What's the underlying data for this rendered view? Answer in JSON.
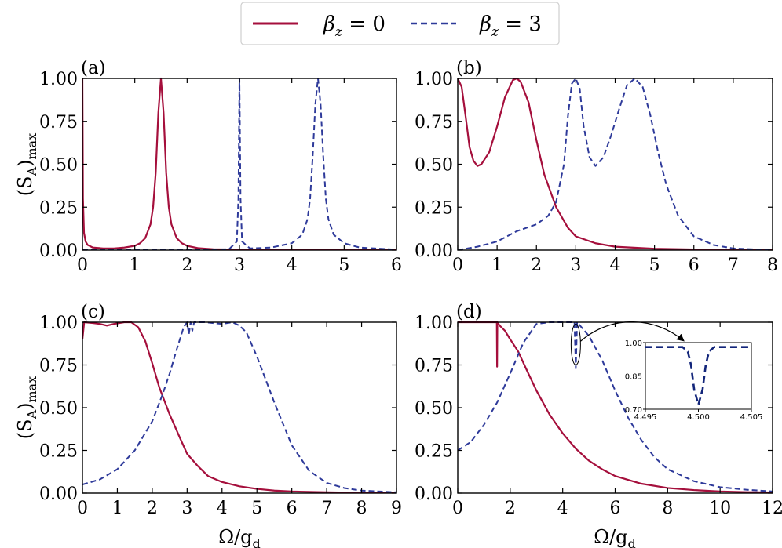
{
  "legend": {
    "entries": [
      {
        "label": "βz = 0",
        "sym": "β",
        "sub": "z",
        "rest": " = 0",
        "color": "#a50f3c",
        "dash": "solid"
      },
      {
        "label": "βz = 3",
        "sym": "β",
        "sub": "z",
        "rest": " = 3",
        "color": "#2e3a9a",
        "dash": "dashed"
      }
    ]
  },
  "y_axis_title": {
    "main": "(S",
    "sub1": "A",
    "close": ")",
    "sub2": "max"
  },
  "x_axis_title": {
    "main": "Ω/g",
    "sub": "d"
  },
  "chart_data": [
    {
      "type": "line",
      "panel": "(a)",
      "xlim": [
        0,
        6
      ],
      "ylim": [
        0,
        1
      ],
      "x_ticks": [
        "0",
        "1",
        "2",
        "3",
        "4",
        "5",
        "6"
      ],
      "y_ticks": [
        "0.00",
        "0.25",
        "0.50",
        "0.75",
        "1.00"
      ],
      "xlabel": "",
      "ylabel": "(SA)max",
      "series": [
        {
          "name": "βz = 0",
          "x": [
            0,
            0.01,
            0.03,
            0.06,
            0.1,
            0.2,
            0.4,
            0.6,
            0.8,
            1.0,
            1.1,
            1.2,
            1.3,
            1.35,
            1.4,
            1.45,
            1.5,
            1.55,
            1.6,
            1.65,
            1.7,
            1.8,
            1.9,
            2.0,
            2.2,
            2.5,
            3.0,
            4.0,
            5.0,
            6.0
          ],
          "y": [
            1.0,
            0.3,
            0.1,
            0.05,
            0.03,
            0.015,
            0.01,
            0.01,
            0.015,
            0.025,
            0.04,
            0.07,
            0.15,
            0.25,
            0.45,
            0.8,
            1.0,
            0.8,
            0.45,
            0.25,
            0.15,
            0.07,
            0.04,
            0.025,
            0.012,
            0.005,
            0.003,
            0.001,
            0.001,
            0.0
          ]
        },
        {
          "name": "βz = 3",
          "x": [
            0,
            1.0,
            2.0,
            2.8,
            2.95,
            2.98,
            3.0,
            3.02,
            3.05,
            3.2,
            3.6,
            4.0,
            4.2,
            4.3,
            4.35,
            4.4,
            4.45,
            4.5,
            4.55,
            4.6,
            4.65,
            4.7,
            4.8,
            5.0,
            5.3,
            6.0
          ],
          "y": [
            0,
            0.002,
            0.003,
            0.005,
            0.05,
            0.3,
            1.0,
            0.3,
            0.05,
            0.01,
            0.015,
            0.04,
            0.09,
            0.18,
            0.3,
            0.55,
            0.85,
            1.0,
            0.85,
            0.55,
            0.3,
            0.18,
            0.09,
            0.04,
            0.015,
            0.003
          ]
        }
      ]
    },
    {
      "type": "line",
      "panel": "(b)",
      "xlim": [
        0,
        8
      ],
      "ylim": [
        0,
        1
      ],
      "x_ticks": [
        "0",
        "1",
        "2",
        "3",
        "4",
        "5",
        "6",
        "7",
        "8"
      ],
      "y_ticks": [
        "0.00",
        "0.25",
        "0.50",
        "0.75",
        "1.00"
      ],
      "xlabel": "",
      "ylabel": "",
      "series": [
        {
          "name": "βz = 0",
          "x": [
            0,
            0.1,
            0.2,
            0.3,
            0.4,
            0.5,
            0.6,
            0.8,
            1.0,
            1.2,
            1.4,
            1.5,
            1.6,
            1.8,
            2.0,
            2.2,
            2.5,
            2.8,
            3.0,
            3.5,
            4.0,
            5.0,
            6.0,
            8.0
          ],
          "y": [
            1.0,
            0.95,
            0.78,
            0.6,
            0.52,
            0.49,
            0.5,
            0.57,
            0.72,
            0.89,
            0.99,
            1.0,
            0.98,
            0.86,
            0.64,
            0.44,
            0.25,
            0.13,
            0.08,
            0.04,
            0.02,
            0.008,
            0.004,
            0.0
          ]
        },
        {
          "name": "βz = 3",
          "x": [
            0,
            0.5,
            1.0,
            1.5,
            2.0,
            2.3,
            2.5,
            2.7,
            2.8,
            2.9,
            3.0,
            3.1,
            3.2,
            3.35,
            3.5,
            3.7,
            3.9,
            4.1,
            4.3,
            4.5,
            4.7,
            4.9,
            5.1,
            5.3,
            5.6,
            6.0,
            6.5,
            7.0,
            8.0
          ],
          "y": [
            0,
            0.02,
            0.05,
            0.11,
            0.15,
            0.2,
            0.28,
            0.5,
            0.78,
            0.97,
            1.0,
            0.94,
            0.72,
            0.54,
            0.49,
            0.54,
            0.67,
            0.82,
            0.96,
            1.0,
            0.95,
            0.78,
            0.56,
            0.38,
            0.2,
            0.08,
            0.03,
            0.01,
            0.0
          ]
        }
      ]
    },
    {
      "type": "line",
      "panel": "(c)",
      "xlim": [
        0,
        9
      ],
      "ylim": [
        0,
        1
      ],
      "x_ticks": [
        "0",
        "1",
        "2",
        "3",
        "4",
        "5",
        "6",
        "7",
        "8",
        "9"
      ],
      "y_ticks": [
        "0.00",
        "0.25",
        "0.50",
        "0.75",
        "1.00"
      ],
      "xlabel": "Ω/gd",
      "ylabel": "(SA)max",
      "series": [
        {
          "name": "βz = 0",
          "x": [
            0,
            0.05,
            0.3,
            0.5,
            0.7,
            0.9,
            1.2,
            1.4,
            1.6,
            1.8,
            2.0,
            2.2,
            2.5,
            2.8,
            3.0,
            3.3,
            3.6,
            4.0,
            4.5,
            5.0,
            5.5,
            6.0,
            7.0,
            8.0,
            9.0
          ],
          "y": [
            0.9,
            1.0,
            0.995,
            0.99,
            0.98,
            0.99,
            1.0,
            1.0,
            0.97,
            0.89,
            0.76,
            0.62,
            0.46,
            0.32,
            0.23,
            0.16,
            0.1,
            0.065,
            0.04,
            0.025,
            0.015,
            0.01,
            0.005,
            0.002,
            0.001
          ]
        },
        {
          "name": "βz = 3",
          "x": [
            0,
            0.5,
            1.0,
            1.5,
            2.0,
            2.3,
            2.5,
            2.7,
            2.9,
            3.0,
            3.05,
            3.1,
            3.15,
            3.2,
            3.5,
            4.0,
            4.3,
            4.5,
            4.7,
            5.0,
            5.5,
            6.0,
            6.5,
            7.0,
            7.5,
            8.0,
            9.0
          ],
          "y": [
            0.05,
            0.08,
            0.14,
            0.25,
            0.42,
            0.58,
            0.7,
            0.84,
            0.97,
            1.0,
            0.93,
            1.0,
            0.95,
            1.0,
            1.0,
            0.99,
            1.0,
            0.98,
            0.94,
            0.8,
            0.53,
            0.28,
            0.13,
            0.06,
            0.03,
            0.015,
            0.005
          ]
        }
      ]
    },
    {
      "type": "line",
      "panel": "(d)",
      "xlim": [
        0,
        12
      ],
      "ylim": [
        0,
        1
      ],
      "x_ticks": [
        "0",
        "2",
        "4",
        "6",
        "8",
        "10",
        "12"
      ],
      "y_ticks": [
        "0.00",
        "0.25",
        "0.50",
        "0.75",
        "1.00"
      ],
      "xlabel": "Ω/gd",
      "ylabel": "",
      "series": [
        {
          "name": "βz = 0",
          "x": [
            0,
            1.0,
            1.4,
            1.49,
            1.5,
            1.51,
            1.6,
            1.8,
            2.0,
            2.3,
            2.6,
            3.0,
            3.5,
            4.0,
            4.5,
            5.0,
            5.5,
            6.0,
            7.0,
            8.0,
            9.0,
            10.0,
            11.0,
            12.0
          ],
          "y": [
            1.0,
            1.0,
            1.0,
            1.0,
            0.74,
            1.0,
            0.98,
            0.95,
            0.9,
            0.83,
            0.73,
            0.6,
            0.46,
            0.35,
            0.26,
            0.19,
            0.14,
            0.1,
            0.055,
            0.03,
            0.018,
            0.01,
            0.006,
            0.004
          ]
        },
        {
          "name": "βz = 3",
          "x": [
            0,
            0.5,
            1.0,
            1.5,
            2.0,
            2.5,
            3.0,
            3.5,
            4.0,
            4.45,
            4.5,
            4.55,
            5.0,
            5.5,
            6.0,
            6.5,
            7.0,
            7.5,
            8.0,
            9.0,
            10.0,
            11.0,
            12.0
          ],
          "y": [
            0.25,
            0.3,
            0.4,
            0.53,
            0.7,
            0.88,
            0.99,
            1.0,
            1.0,
            1.0,
            0.73,
            1.0,
            0.92,
            0.78,
            0.6,
            0.44,
            0.31,
            0.21,
            0.14,
            0.07,
            0.035,
            0.02,
            0.01
          ]
        }
      ],
      "inset": {
        "xlim": [
          4.495,
          4.505
        ],
        "ylim": [
          0.7,
          1.0
        ],
        "x_ticks": [
          "4.495",
          "4.500",
          "4.505"
        ],
        "y_ticks": [
          "0.70",
          "0.85",
          "1.00"
        ],
        "series": [
          {
            "name": "βz = 3",
            "x": [
              4.495,
              4.4985,
              4.499,
              4.4993,
              4.4996,
              4.5,
              4.5004,
              4.5007,
              4.501,
              4.5015,
              4.505
            ],
            "y": [
              0.98,
              0.98,
              0.96,
              0.9,
              0.79,
              0.72,
              0.79,
              0.9,
              0.96,
              0.98,
              0.98
            ]
          }
        ]
      }
    }
  ]
}
